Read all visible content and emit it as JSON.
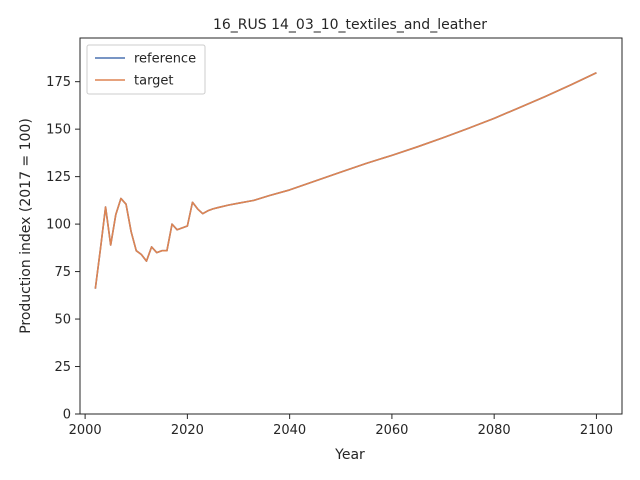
{
  "chart_data": {
    "type": "line",
    "title": "16_RUS 14_03_10_textiles_and_leather",
    "xlabel": "Year",
    "ylabel": "Production index (2017 = 100)",
    "xlim": [
      1999,
      2105
    ],
    "ylim": [
      0,
      198
    ],
    "xticks": [
      2000,
      2020,
      2040,
      2060,
      2080,
      2100
    ],
    "yticks": [
      0,
      25,
      50,
      75,
      100,
      125,
      150,
      175
    ],
    "grid": false,
    "legend_position": "top-left",
    "series": [
      {
        "name": "reference",
        "color": "#4c72b0",
        "x": [
          2002,
          2003,
          2004,
          2005,
          2006,
          2007,
          2008,
          2009,
          2010,
          2011,
          2012,
          2013,
          2014,
          2015,
          2016,
          2017,
          2018,
          2019,
          2020,
          2021,
          2022,
          2023,
          2024,
          2025,
          2026,
          2028,
          2030,
          2033,
          2036,
          2040,
          2045,
          2050,
          2055,
          2060,
          2065,
          2070,
          2075,
          2080,
          2085,
          2090,
          2095,
          2100
        ],
        "y": [
          66,
          87,
          109,
          89,
          105,
          113.5,
          110.5,
          96,
          86,
          84,
          80.5,
          88,
          85,
          86,
          86,
          100,
          97,
          98,
          99,
          111.5,
          108,
          105.5,
          107,
          108,
          108.7,
          110,
          111,
          112.5,
          115,
          118,
          122.7,
          127.4,
          132,
          136.2,
          140.7,
          145.5,
          150.5,
          155.7,
          161.4,
          167.2,
          173.3,
          179.7
        ]
      },
      {
        "name": "target",
        "color": "#dd8452",
        "x": [
          2002,
          2003,
          2004,
          2005,
          2006,
          2007,
          2008,
          2009,
          2010,
          2011,
          2012,
          2013,
          2014,
          2015,
          2016,
          2017,
          2018,
          2019,
          2020,
          2021,
          2022,
          2023,
          2024,
          2025,
          2026,
          2028,
          2030,
          2033,
          2036,
          2040,
          2045,
          2050,
          2055,
          2060,
          2065,
          2070,
          2075,
          2080,
          2085,
          2090,
          2095,
          2100
        ],
        "y": [
          66,
          87,
          109,
          89,
          105,
          113.5,
          110.5,
          96,
          86,
          84,
          80.5,
          88,
          85,
          86,
          86,
          100,
          97,
          98,
          99,
          111.5,
          108,
          105.5,
          107,
          108,
          108.7,
          110,
          111,
          112.5,
          115,
          118,
          122.7,
          127.4,
          132,
          136.2,
          140.7,
          145.5,
          150.5,
          155.7,
          161.4,
          167.2,
          173.3,
          179.7
        ]
      }
    ]
  }
}
